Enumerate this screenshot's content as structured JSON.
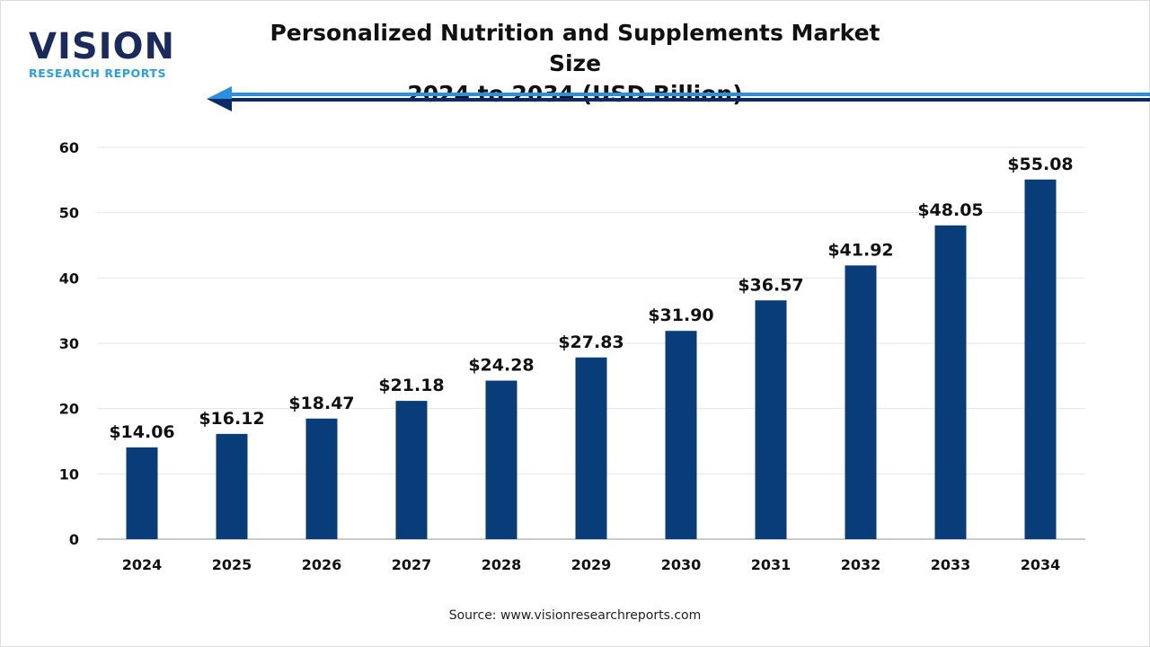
{
  "logo": {
    "word": "VISION",
    "sub": "RESEARCH REPORTS"
  },
  "title_line1": "Personalized Nutrition and Supplements Market Size",
  "title_line2": "2024 to 2034 (USD Billion)",
  "source": "Source: www.visionresearchreports.com",
  "colors": {
    "bar": "#083d7a",
    "arrow_light": "#2a8fe0",
    "arrow_dark": "#0b2a66"
  },
  "chart_data": {
    "type": "bar",
    "title": "Personalized Nutrition and Supplements Market Size 2024 to 2034 (USD Billion)",
    "categories": [
      "2024",
      "2025",
      "2026",
      "2027",
      "2028",
      "2029",
      "2030",
      "2031",
      "2032",
      "2033",
      "2034"
    ],
    "values": [
      14.06,
      16.12,
      18.47,
      21.18,
      24.28,
      27.83,
      31.9,
      36.57,
      41.92,
      48.05,
      55.08
    ],
    "data_labels": [
      "$14.06",
      "$16.12",
      "$18.47",
      "$21.18",
      "$24.28",
      "$27.83",
      "$31.90",
      "$36.57",
      "$41.92",
      "$48.05",
      "$55.08"
    ],
    "yticks": [
      "0",
      "10",
      "20",
      "30",
      "40",
      "50",
      "60"
    ],
    "ylim": [
      0,
      60
    ],
    "grid": true,
    "xlabel": "",
    "ylabel": ""
  }
}
